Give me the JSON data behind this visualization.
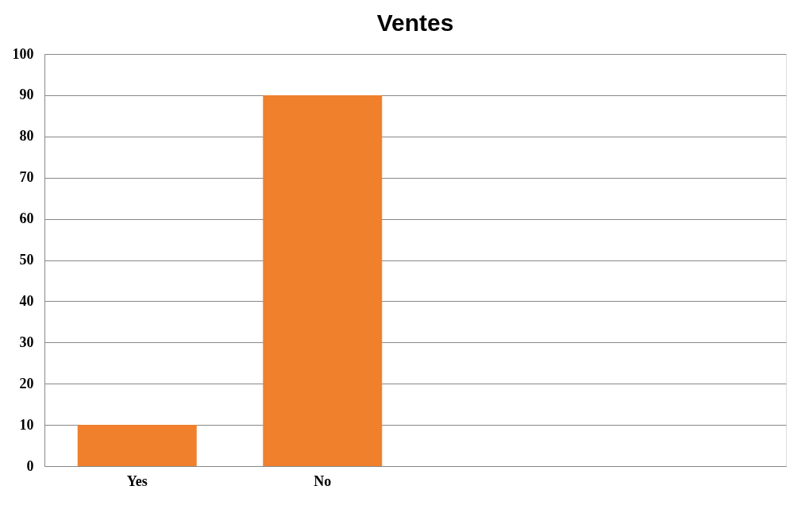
{
  "chart_data": {
    "type": "bar",
    "title": "Ventes",
    "categories": [
      "Yes",
      "No",
      null,
      null
    ],
    "values": [
      10,
      90,
      null,
      null
    ],
    "color": "#f0802c",
    "ylim": [
      0,
      100
    ],
    "yticks": [
      0,
      10,
      20,
      30,
      40,
      50,
      60,
      70,
      80,
      90,
      100
    ],
    "grid": "y"
  }
}
